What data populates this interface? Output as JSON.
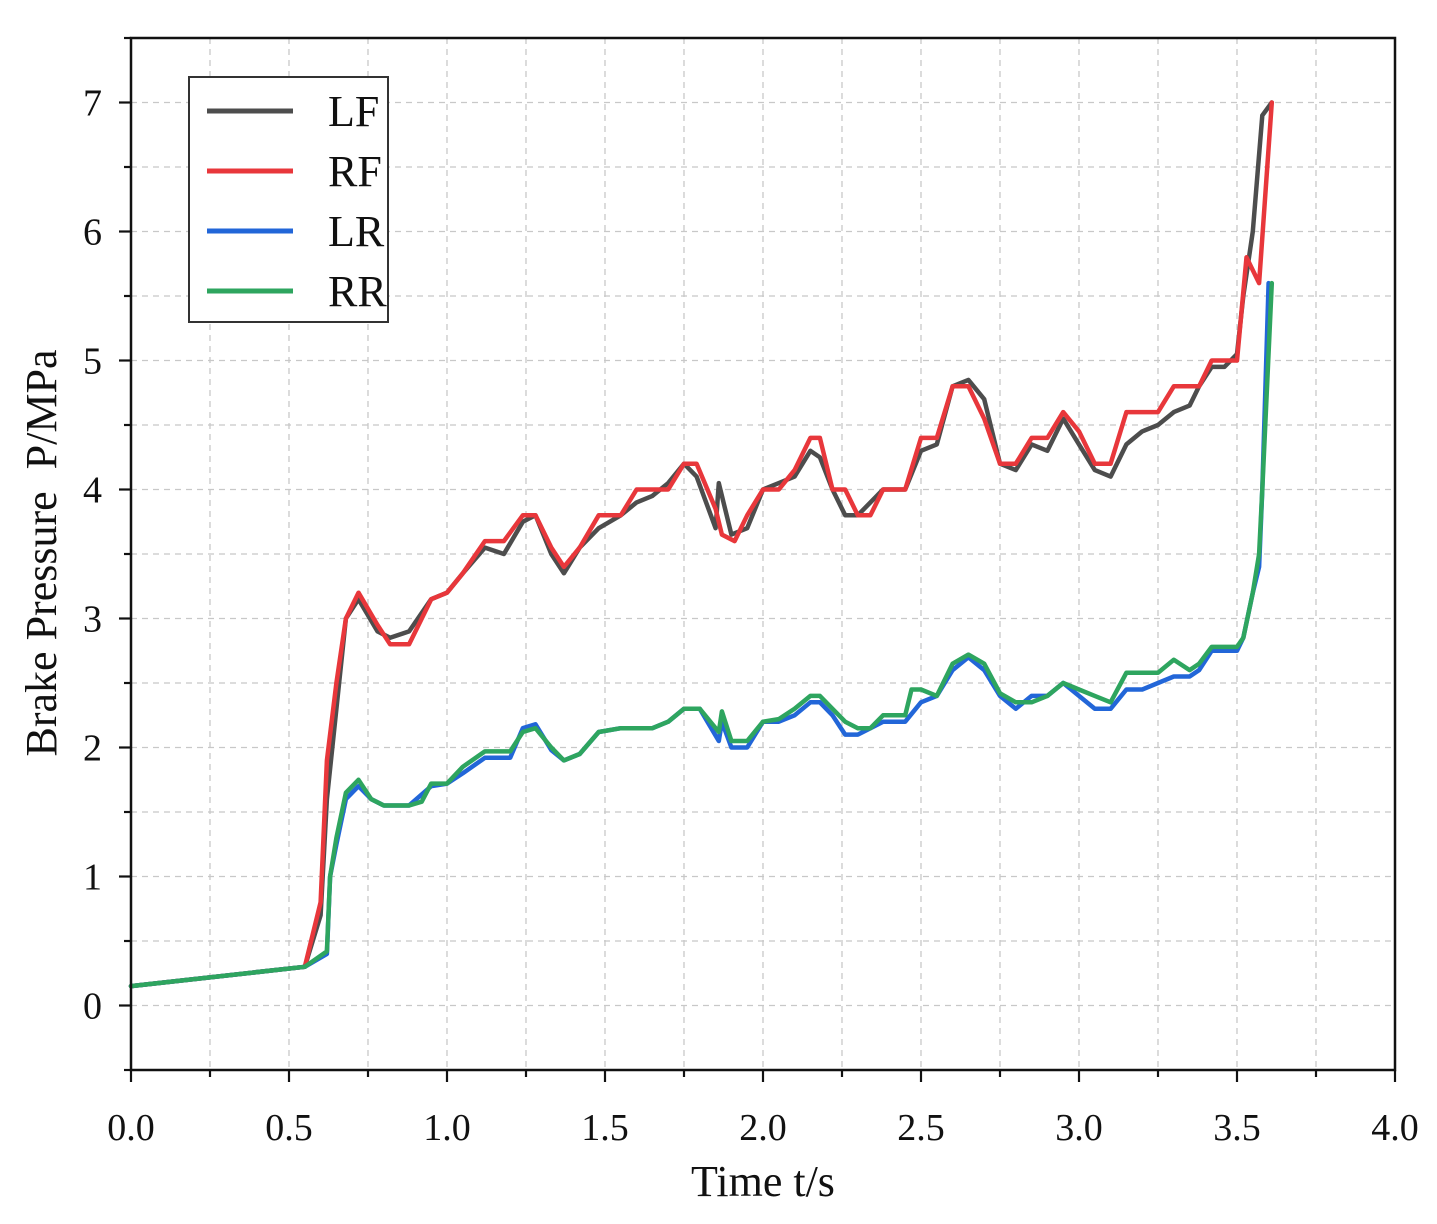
{
  "chart_data": {
    "type": "line",
    "title": "",
    "xlabel": "Time t/s",
    "ylabel": "Brake Pressure  P/MPa",
    "xlim": [
      0,
      4
    ],
    "ylim": [
      -0.5,
      7.5
    ],
    "x_ticks": [
      "0.0",
      "0.5",
      "1.0",
      "1.5",
      "2.0",
      "2.5",
      "3.0",
      "3.5",
      "4.0"
    ],
    "y_ticks": [
      "0",
      "1",
      "2",
      "3",
      "4",
      "5",
      "6",
      "7"
    ],
    "grid": true,
    "legend_position": "top-left",
    "colors": {
      "LF": "#4d4d4d",
      "RF": "#e8373b",
      "LR": "#2266d8",
      "RR": "#2ea55f"
    },
    "series": [
      {
        "name": "LF",
        "x": [
          0,
          0.55,
          0.6,
          0.62,
          0.65,
          0.68,
          0.72,
          0.78,
          0.82,
          0.88,
          0.95,
          1.0,
          1.05,
          1.12,
          1.18,
          1.24,
          1.28,
          1.33,
          1.37,
          1.42,
          1.48,
          1.55,
          1.6,
          1.65,
          1.7,
          1.75,
          1.79,
          1.85,
          1.86,
          1.9,
          1.95,
          2.0,
          2.05,
          2.1,
          2.15,
          2.18,
          2.22,
          2.26,
          2.3,
          2.34,
          2.38,
          2.45,
          2.5,
          2.55,
          2.6,
          2.65,
          2.7,
          2.75,
          2.8,
          2.85,
          2.9,
          2.95,
          3.0,
          3.05,
          3.1,
          3.15,
          3.2,
          3.25,
          3.3,
          3.35,
          3.38,
          3.42,
          3.46,
          3.5,
          3.52,
          3.55,
          3.58,
          3.61
        ],
        "y": [
          0.15,
          0.3,
          0.7,
          1.6,
          2.3,
          3.0,
          3.15,
          2.9,
          2.85,
          2.9,
          3.15,
          3.2,
          3.35,
          3.55,
          3.5,
          3.75,
          3.8,
          3.5,
          3.35,
          3.55,
          3.7,
          3.8,
          3.9,
          3.95,
          4.05,
          4.2,
          4.1,
          3.7,
          4.05,
          3.65,
          3.7,
          4.0,
          4.05,
          4.1,
          4.3,
          4.25,
          4.0,
          3.8,
          3.8,
          3.9,
          4.0,
          4.0,
          4.3,
          4.35,
          4.8,
          4.85,
          4.7,
          4.2,
          4.15,
          4.35,
          4.3,
          4.55,
          4.35,
          4.15,
          4.1,
          4.35,
          4.45,
          4.5,
          4.6,
          4.65,
          4.8,
          4.95,
          4.95,
          5.05,
          5.5,
          6.0,
          6.9,
          7.0
        ]
      },
      {
        "name": "RF",
        "x": [
          0,
          0.55,
          0.6,
          0.62,
          0.65,
          0.68,
          0.72,
          0.78,
          0.82,
          0.88,
          0.95,
          1.0,
          1.05,
          1.12,
          1.18,
          1.24,
          1.28,
          1.33,
          1.37,
          1.42,
          1.48,
          1.55,
          1.6,
          1.65,
          1.7,
          1.75,
          1.79,
          1.85,
          1.87,
          1.91,
          1.95,
          2.0,
          2.05,
          2.1,
          2.15,
          2.18,
          2.22,
          2.26,
          2.3,
          2.34,
          2.38,
          2.45,
          2.5,
          2.55,
          2.6,
          2.65,
          2.7,
          2.75,
          2.8,
          2.85,
          2.9,
          2.95,
          3.0,
          3.05,
          3.1,
          3.15,
          3.2,
          3.25,
          3.3,
          3.35,
          3.38,
          3.42,
          3.46,
          3.5,
          3.53,
          3.57,
          3.61
        ],
        "y": [
          0.15,
          0.3,
          0.8,
          1.9,
          2.5,
          3.0,
          3.2,
          2.95,
          2.8,
          2.8,
          3.15,
          3.2,
          3.35,
          3.6,
          3.6,
          3.8,
          3.8,
          3.55,
          3.4,
          3.55,
          3.8,
          3.8,
          4.0,
          4.0,
          4.0,
          4.2,
          4.2,
          3.85,
          3.65,
          3.6,
          3.8,
          4.0,
          4.0,
          4.15,
          4.4,
          4.4,
          4.0,
          4.0,
          3.8,
          3.8,
          4.0,
          4.0,
          4.4,
          4.4,
          4.8,
          4.8,
          4.55,
          4.2,
          4.2,
          4.4,
          4.4,
          4.6,
          4.45,
          4.2,
          4.2,
          4.6,
          4.6,
          4.6,
          4.8,
          4.8,
          4.8,
          5.0,
          5.0,
          5.0,
          5.8,
          5.6,
          7.0
        ]
      },
      {
        "name": "LR",
        "x": [
          0,
          0.55,
          0.62,
          0.63,
          0.65,
          0.68,
          0.72,
          0.76,
          0.8,
          0.88,
          0.95,
          1.0,
          1.05,
          1.12,
          1.2,
          1.24,
          1.28,
          1.33,
          1.37,
          1.42,
          1.48,
          1.55,
          1.6,
          1.65,
          1.7,
          1.75,
          1.8,
          1.86,
          1.87,
          1.9,
          1.95,
          2.0,
          2.05,
          2.1,
          2.15,
          2.18,
          2.22,
          2.26,
          2.3,
          2.34,
          2.38,
          2.45,
          2.5,
          2.55,
          2.6,
          2.65,
          2.7,
          2.75,
          2.8,
          2.85,
          2.9,
          2.95,
          3.0,
          3.05,
          3.1,
          3.15,
          3.2,
          3.25,
          3.3,
          3.35,
          3.38,
          3.42,
          3.46,
          3.5,
          3.52,
          3.55,
          3.57,
          3.58,
          3.6
        ],
        "y": [
          0.15,
          0.3,
          0.4,
          1.0,
          1.25,
          1.6,
          1.7,
          1.6,
          1.55,
          1.55,
          1.7,
          1.72,
          1.8,
          1.92,
          1.92,
          2.15,
          2.18,
          1.98,
          1.9,
          1.95,
          2.12,
          2.15,
          2.15,
          2.15,
          2.2,
          2.3,
          2.3,
          2.05,
          2.2,
          2.0,
          2.0,
          2.2,
          2.2,
          2.25,
          2.35,
          2.35,
          2.25,
          2.1,
          2.1,
          2.15,
          2.2,
          2.2,
          2.35,
          2.4,
          2.6,
          2.7,
          2.6,
          2.4,
          2.3,
          2.4,
          2.4,
          2.5,
          2.4,
          2.3,
          2.3,
          2.45,
          2.45,
          2.5,
          2.55,
          2.55,
          2.6,
          2.75,
          2.75,
          2.75,
          2.85,
          3.2,
          3.4,
          4.0,
          5.6
        ]
      },
      {
        "name": "RR",
        "x": [
          0,
          0.55,
          0.62,
          0.63,
          0.65,
          0.68,
          0.72,
          0.76,
          0.8,
          0.88,
          0.92,
          0.95,
          1.0,
          1.05,
          1.12,
          1.2,
          1.24,
          1.28,
          1.33,
          1.37,
          1.42,
          1.48,
          1.55,
          1.6,
          1.65,
          1.7,
          1.75,
          1.8,
          1.86,
          1.87,
          1.9,
          1.95,
          2.0,
          2.05,
          2.1,
          2.15,
          2.18,
          2.22,
          2.26,
          2.3,
          2.34,
          2.38,
          2.45,
          2.47,
          2.5,
          2.55,
          2.6,
          2.65,
          2.7,
          2.75,
          2.8,
          2.85,
          2.9,
          2.95,
          3.0,
          3.05,
          3.1,
          3.15,
          3.2,
          3.25,
          3.3,
          3.35,
          3.38,
          3.42,
          3.46,
          3.5,
          3.52,
          3.55,
          3.57,
          3.58,
          3.61
        ],
        "y": [
          0.15,
          0.3,
          0.42,
          1.0,
          1.3,
          1.65,
          1.75,
          1.6,
          1.55,
          1.55,
          1.58,
          1.72,
          1.72,
          1.85,
          1.97,
          1.97,
          2.12,
          2.15,
          2.0,
          1.9,
          1.95,
          2.12,
          2.15,
          2.15,
          2.15,
          2.2,
          2.3,
          2.3,
          2.12,
          2.28,
          2.05,
          2.05,
          2.2,
          2.22,
          2.3,
          2.4,
          2.4,
          2.3,
          2.2,
          2.15,
          2.15,
          2.25,
          2.25,
          2.45,
          2.45,
          2.4,
          2.65,
          2.72,
          2.65,
          2.42,
          2.35,
          2.35,
          2.4,
          2.5,
          2.45,
          2.4,
          2.35,
          2.58,
          2.58,
          2.58,
          2.68,
          2.6,
          2.65,
          2.78,
          2.78,
          2.78,
          2.85,
          3.2,
          3.5,
          4.0,
          5.6
        ]
      }
    ]
  }
}
